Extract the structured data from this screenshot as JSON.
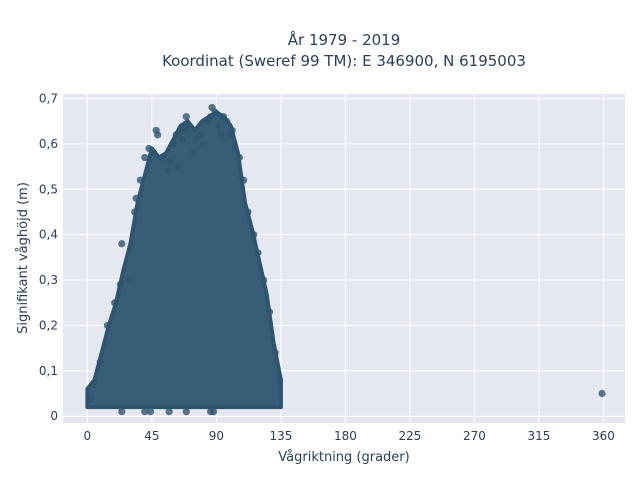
{
  "chart_data": {
    "type": "scatter",
    "title_line1": "År 1979 - 2019",
    "title_line2": "Koordinat (Sweref 99 TM): E 346900, N 6195003",
    "xlabel": "Vågriktning (grader)",
    "ylabel": "Signifikant våghöjd (m)",
    "xlim": [
      -17,
      375
    ],
    "ylim": [
      -0.015,
      0.71
    ],
    "xticks": [
      0,
      45,
      90,
      135,
      180,
      225,
      270,
      315,
      360
    ],
    "xtick_labels": [
      "0",
      "45",
      "90",
      "135",
      "180",
      "225",
      "270",
      "315",
      "360"
    ],
    "yticks": [
      0,
      0.1,
      0.2,
      0.3,
      0.4,
      0.5,
      0.6,
      0.7
    ],
    "ytick_labels": [
      "0",
      "0,1",
      "0,2",
      "0,3",
      "0,4",
      "0,5",
      "0,6",
      "0,7"
    ],
    "grid": true,
    "marker_color": "#2e5570",
    "plot_bg": "#e5e8f1",
    "envelope": [
      {
        "x": 0,
        "y": 0.06
      },
      {
        "x": 5,
        "y": 0.08
      },
      {
        "x": 10,
        "y": 0.14
      },
      {
        "x": 15,
        "y": 0.2
      },
      {
        "x": 20,
        "y": 0.25
      },
      {
        "x": 25,
        "y": 0.32
      },
      {
        "x": 30,
        "y": 0.38
      },
      {
        "x": 35,
        "y": 0.47
      },
      {
        "x": 40,
        "y": 0.53
      },
      {
        "x": 45,
        "y": 0.59
      },
      {
        "x": 50,
        "y": 0.57
      },
      {
        "x": 55,
        "y": 0.58
      },
      {
        "x": 60,
        "y": 0.61
      },
      {
        "x": 65,
        "y": 0.64
      },
      {
        "x": 70,
        "y": 0.65
      },
      {
        "x": 75,
        "y": 0.63
      },
      {
        "x": 80,
        "y": 0.65
      },
      {
        "x": 85,
        "y": 0.66
      },
      {
        "x": 90,
        "y": 0.67
      },
      {
        "x": 95,
        "y": 0.66
      },
      {
        "x": 100,
        "y": 0.64
      },
      {
        "x": 105,
        "y": 0.58
      },
      {
        "x": 110,
        "y": 0.47
      },
      {
        "x": 115,
        "y": 0.41
      },
      {
        "x": 120,
        "y": 0.34
      },
      {
        "x": 125,
        "y": 0.27
      },
      {
        "x": 130,
        "y": 0.16
      },
      {
        "x": 135,
        "y": 0.08
      }
    ],
    "cloud_y_min": 0.02,
    "points": [
      {
        "x": 2,
        "y": 0.04
      },
      {
        "x": 5,
        "y": 0.07
      },
      {
        "x": 9,
        "y": 0.12
      },
      {
        "x": 14,
        "y": 0.2
      },
      {
        "x": 19,
        "y": 0.25
      },
      {
        "x": 23,
        "y": 0.29
      },
      {
        "x": 24,
        "y": 0.38
      },
      {
        "x": 30,
        "y": 0.3
      },
      {
        "x": 33,
        "y": 0.45
      },
      {
        "x": 34,
        "y": 0.48
      },
      {
        "x": 37,
        "y": 0.52
      },
      {
        "x": 40,
        "y": 0.57
      },
      {
        "x": 43,
        "y": 0.59
      },
      {
        "x": 46,
        "y": 0.58
      },
      {
        "x": 48,
        "y": 0.63
      },
      {
        "x": 49,
        "y": 0.62
      },
      {
        "x": 52,
        "y": 0.57
      },
      {
        "x": 56,
        "y": 0.54
      },
      {
        "x": 58,
        "y": 0.56
      },
      {
        "x": 60,
        "y": 0.6
      },
      {
        "x": 62,
        "y": 0.62
      },
      {
        "x": 63,
        "y": 0.55
      },
      {
        "x": 66,
        "y": 0.61
      },
      {
        "x": 68,
        "y": 0.63
      },
      {
        "x": 69,
        "y": 0.66
      },
      {
        "x": 71,
        "y": 0.64
      },
      {
        "x": 74,
        "y": 0.58
      },
      {
        "x": 76,
        "y": 0.61
      },
      {
        "x": 79,
        "y": 0.62
      },
      {
        "x": 81,
        "y": 0.6
      },
      {
        "x": 84,
        "y": 0.65
      },
      {
        "x": 86,
        "y": 0.66
      },
      {
        "x": 87,
        "y": 0.68
      },
      {
        "x": 89,
        "y": 0.67
      },
      {
        "x": 91,
        "y": 0.64
      },
      {
        "x": 93,
        "y": 0.62
      },
      {
        "x": 95,
        "y": 0.66
      },
      {
        "x": 97,
        "y": 0.65
      },
      {
        "x": 99,
        "y": 0.62
      },
      {
        "x": 101,
        "y": 0.63
      },
      {
        "x": 103,
        "y": 0.59
      },
      {
        "x": 106,
        "y": 0.57
      },
      {
        "x": 109,
        "y": 0.52
      },
      {
        "x": 112,
        "y": 0.45
      },
      {
        "x": 116,
        "y": 0.4
      },
      {
        "x": 119,
        "y": 0.36
      },
      {
        "x": 123,
        "y": 0.3
      },
      {
        "x": 127,
        "y": 0.23
      },
      {
        "x": 131,
        "y": 0.14
      },
      {
        "x": 134,
        "y": 0.08
      },
      {
        "x": 24,
        "y": 0.01
      },
      {
        "x": 40,
        "y": 0.01
      },
      {
        "x": 44,
        "y": 0.01
      },
      {
        "x": 57,
        "y": 0.01
      },
      {
        "x": 69,
        "y": 0.01
      },
      {
        "x": 86,
        "y": 0.01
      },
      {
        "x": 88,
        "y": 0.01
      },
      {
        "x": 359,
        "y": 0.05
      }
    ]
  }
}
